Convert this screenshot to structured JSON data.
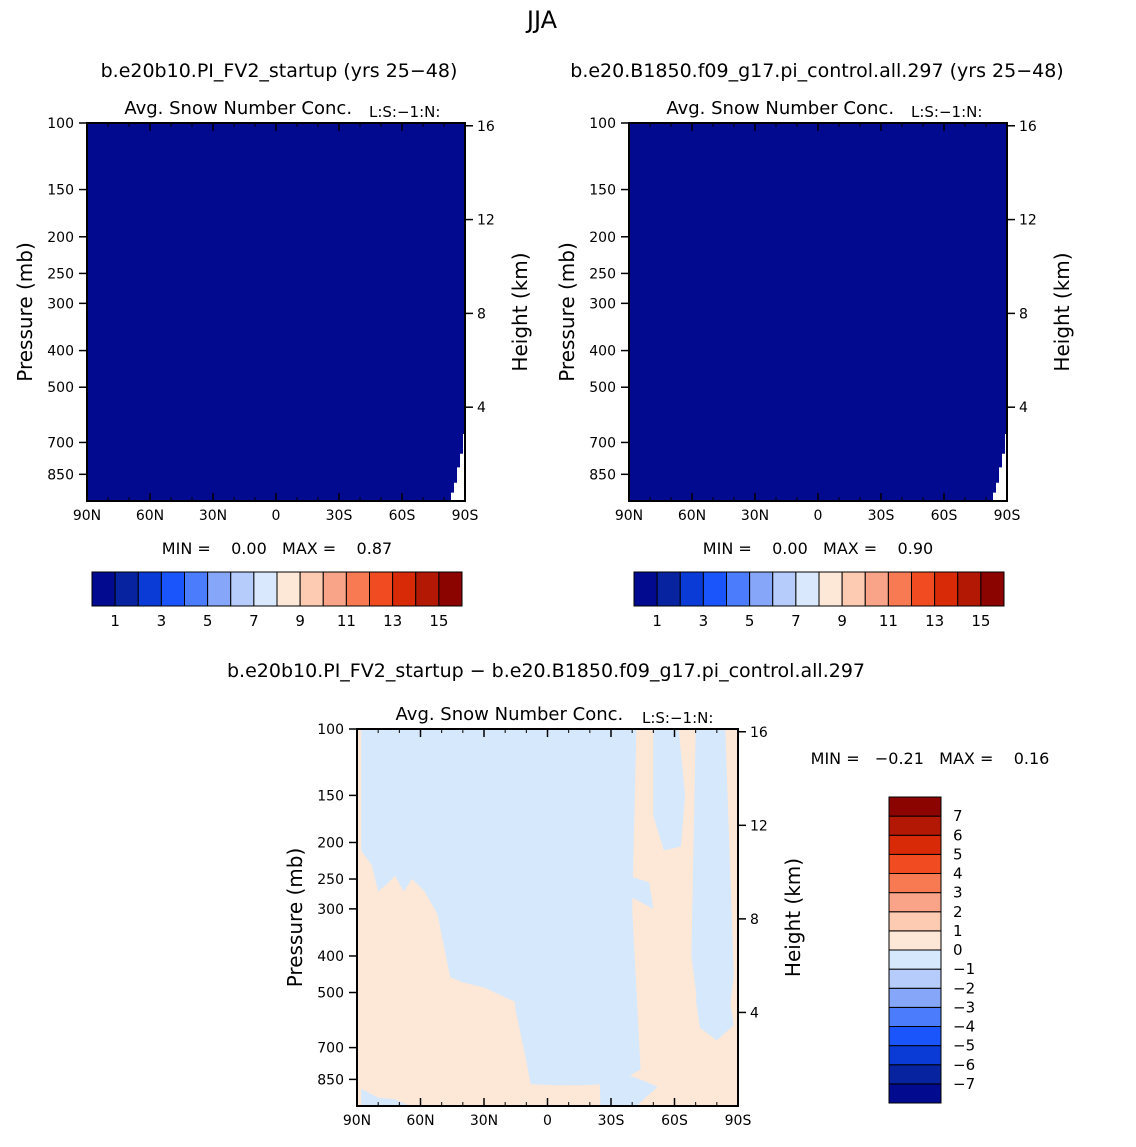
{
  "page_title": "JJA",
  "colors": {
    "contour_positive": "#fde7d6",
    "contour_negative": "#d6e9fc",
    "field_fill": "#020b8f",
    "abs_colorbar": [
      "#020b8f",
      "#07239f",
      "#0a3bd6",
      "#1a55fb",
      "#4a7cfb",
      "#86a6f9",
      "#b6ccfb",
      "#d9e8fc",
      "#fde7d6",
      "#fccbb2",
      "#f9a488",
      "#f77a53",
      "#f04b21",
      "#d92a08",
      "#b31804",
      "#8b0400"
    ],
    "diff_colorbar": [
      "#020b8f",
      "#07239f",
      "#0a3bd6",
      "#1a55fb",
      "#4a7cfb",
      "#86a6f9",
      "#b6ccfb",
      "#d6e9fc",
      "#fde7d6",
      "#fccbb2",
      "#f9a488",
      "#f77a53",
      "#f04b21",
      "#d92a08",
      "#b31804",
      "#8b0400"
    ]
  },
  "chart_data": [
    {
      "type": "heatmap",
      "title": "b.e20b10.PI_FV2_startup (yrs 25−48)",
      "subtitle": "Avg. Snow Number Conc.",
      "units": "L:S:−1:N:",
      "ylabel": "Pressure (mb)",
      "y2label": "Height (km)",
      "xticks": [
        "90N",
        "60N",
        "30N",
        "0",
        "30S",
        "60S",
        "90S"
      ],
      "yticks": [
        100,
        150,
        200,
        250,
        300,
        400,
        500,
        700,
        850
      ],
      "y2ticks": [
        16,
        12,
        8,
        4
      ],
      "min_max": "MIN =    0.00   MAX =    0.87",
      "colorbar_labels": [
        "1",
        "3",
        "5",
        "7",
        "9",
        "11",
        "13",
        "15"
      ],
      "min": 0.0,
      "max": 0.87
    },
    {
      "type": "heatmap",
      "title": "b.e20.B1850.f09_g17.pi_control.all.297 (yrs 25−48)",
      "subtitle": "Avg. Snow Number Conc.",
      "units": "L:S:−1:N:",
      "ylabel": "Pressure (mb)",
      "y2label": "Height (km)",
      "xticks": [
        "90N",
        "60N",
        "30N",
        "0",
        "30S",
        "60S",
        "90S"
      ],
      "yticks": [
        100,
        150,
        200,
        250,
        300,
        400,
        500,
        700,
        850
      ],
      "y2ticks": [
        16,
        12,
        8,
        4
      ],
      "min_max": "MIN =    0.00   MAX =    0.90",
      "colorbar_labels": [
        "1",
        "3",
        "5",
        "7",
        "9",
        "11",
        "13",
        "15"
      ],
      "min": 0.0,
      "max": 0.9
    },
    {
      "type": "heatmap",
      "title": "b.e20b10.PI_FV2_startup − b.e20.B1850.f09_g17.pi_control.all.297",
      "subtitle": "Avg. Snow Number Conc.",
      "units": "L:S:−1:N:",
      "ylabel": "Pressure (mb)",
      "y2label": "Height (km)",
      "xticks": [
        "90N",
        "60N",
        "30N",
        "0",
        "30S",
        "60S",
        "90S"
      ],
      "yticks": [
        100,
        150,
        200,
        250,
        300,
        400,
        500,
        700,
        850
      ],
      "y2ticks": [
        16,
        12,
        8,
        4
      ],
      "min_max": "MIN =   −0.21   MAX =    0.16",
      "colorbar_labels": [
        "7",
        "6",
        "5",
        "4",
        "3",
        "2",
        "1",
        "0",
        "−1",
        "−2",
        "−3",
        "−4",
        "−5",
        "−6",
        "−7"
      ],
      "min": -0.21,
      "max": 0.16
    }
  ]
}
